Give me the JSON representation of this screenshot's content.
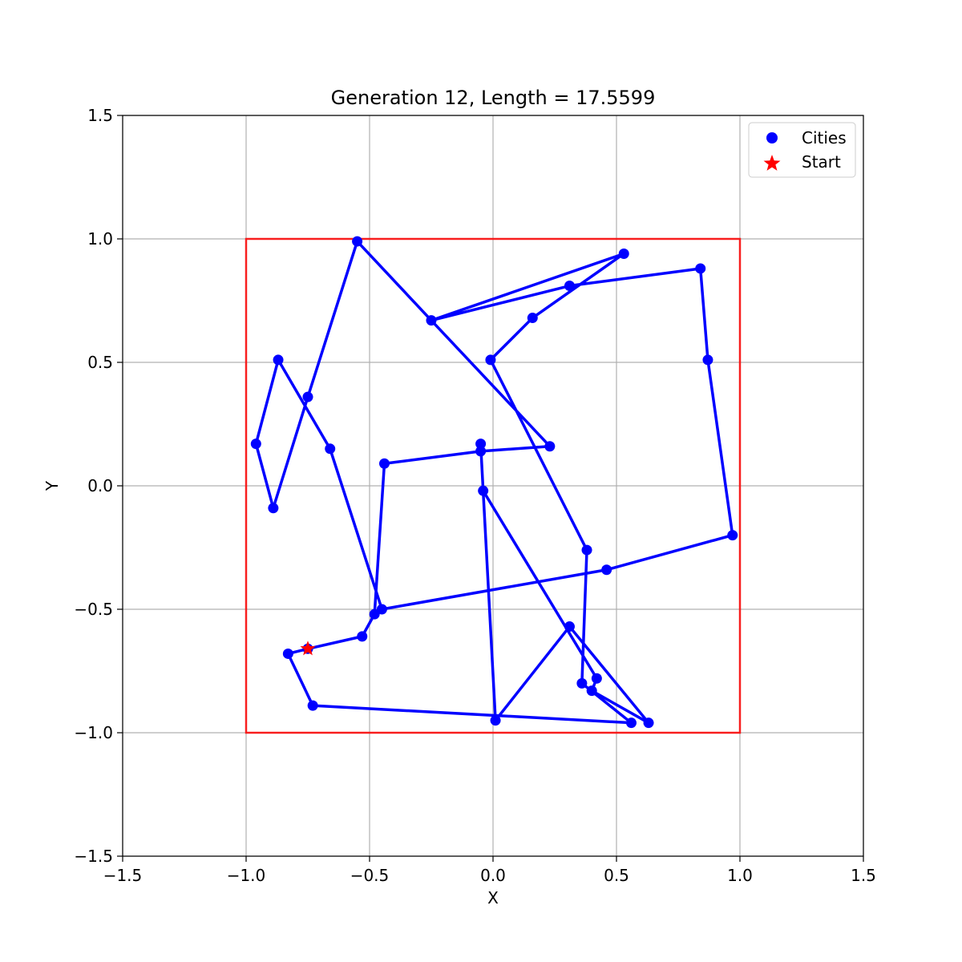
{
  "chart_data": {
    "type": "scatter",
    "title": "Generation 12, Length = 17.5599",
    "xlabel": "X",
    "ylabel": "Y",
    "xlim": [
      -1.5,
      1.5
    ],
    "ylim": [
      -1.5,
      1.5
    ],
    "xticks": [
      -1.5,
      -1.0,
      -0.5,
      0.0,
      0.5,
      1.0,
      1.5
    ],
    "yticks": [
      -1.5,
      -1.0,
      -0.5,
      0.0,
      0.5,
      1.0,
      1.5
    ],
    "xtick_labels": [
      "−1.5",
      "−1.0",
      "−0.5",
      "0.0",
      "0.5",
      "1.0",
      "1.5"
    ],
    "ytick_labels": [
      "−1.5",
      "−1.0",
      "−0.5",
      "0.0",
      "0.5",
      "1.0",
      "1.5"
    ],
    "grid": true,
    "legend_placement": "top-right",
    "boundary": {
      "xmin": -1.0,
      "xmax": 1.0,
      "ymin": -1.0,
      "ymax": 1.0,
      "color": "#ff0000"
    },
    "route_color": "#0000ff",
    "city_color": "#0000ff",
    "start_color": "#ff0000",
    "series": [
      {
        "name": "Cities",
        "marker": "circle"
      },
      {
        "name": "Start",
        "marker": "star"
      }
    ],
    "start": {
      "x": -0.75,
      "y": -0.66
    },
    "route": [
      [
        -0.75,
        -0.66
      ],
      [
        -0.83,
        -0.68
      ],
      [
        -0.73,
        -0.89
      ],
      [
        0.56,
        -0.96
      ],
      [
        0.36,
        -0.8
      ],
      [
        0.38,
        -0.26
      ],
      [
        -0.01,
        0.51
      ],
      [
        0.16,
        0.68
      ],
      [
        0.53,
        0.94
      ],
      [
        -0.25,
        0.67
      ],
      [
        0.31,
        0.81
      ],
      [
        0.84,
        0.88
      ],
      [
        0.87,
        0.51
      ],
      [
        0.97,
        -0.2
      ],
      [
        0.46,
        -0.34
      ],
      [
        -0.45,
        -0.5
      ],
      [
        -0.66,
        0.15
      ],
      [
        -0.87,
        0.51
      ],
      [
        -0.96,
        0.17
      ],
      [
        -0.89,
        -0.09
      ],
      [
        -0.75,
        0.36
      ],
      [
        -0.55,
        0.99
      ],
      [
        -0.25,
        0.67
      ],
      [
        0.23,
        0.16
      ],
      [
        -0.05,
        0.14
      ],
      [
        -0.44,
        0.09
      ],
      [
        -0.48,
        -0.52
      ],
      [
        -0.53,
        -0.61
      ],
      [
        -0.75,
        -0.66
      ]
    ],
    "route_tail": [
      [
        -0.05,
        0.17
      ],
      [
        -0.04,
        -0.02
      ],
      [
        0.42,
        -0.78
      ],
      [
        0.4,
        -0.83
      ],
      [
        0.63,
        -0.96
      ],
      [
        0.31,
        -0.57
      ],
      [
        0.01,
        -0.95
      ],
      [
        -0.04,
        -0.02
      ]
    ]
  }
}
